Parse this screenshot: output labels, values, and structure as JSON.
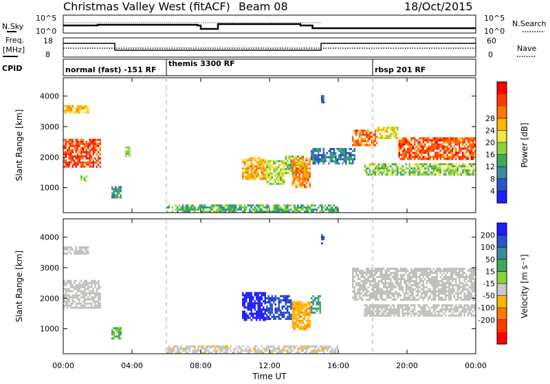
{
  "header": {
    "title": "Christmas Valley West (fitACF)",
    "beam": "Beam 08",
    "date": "18/Oct/2015"
  },
  "time_axis": {
    "label": "Time UT",
    "range_hours": [
      0,
      24
    ],
    "tick_labels": [
      "00:00",
      "04:00",
      "08:00",
      "12:00",
      "16:00",
      "20:00",
      "00:00"
    ],
    "tick_hours": [
      0,
      4,
      8,
      12,
      16,
      20,
      24
    ]
  },
  "mode_boundaries_hours": [
    6,
    18
  ],
  "nsky_panel": {
    "left_label": "N.Sky",
    "right_label": "N.Search",
    "left_ticks": [
      "10^5",
      "10^0"
    ],
    "right_ticks": [
      "10^5",
      "10^0"
    ]
  },
  "freq_panel": {
    "left_label_1": "Freq.",
    "left_label_2": "[MHz]",
    "right_label": "Nave",
    "left_ticks": [
      "18",
      "8"
    ],
    "right_ticks": [
      "60",
      "0"
    ]
  },
  "cpid_panel": {
    "label": "CPID",
    "segments": [
      {
        "start_hour": 0,
        "end_hour": 6,
        "label": "normal (fast) -151 RF"
      },
      {
        "start_hour": 6,
        "end_hour": 18,
        "label": "themis 3300 RF"
      },
      {
        "start_hour": 18,
        "end_hour": 24,
        "label": "rbsp 201 RF"
      }
    ]
  },
  "colors": {
    "power_scale": [
      "#1e1eff",
      "#2a55c8",
      "#3a8aa0",
      "#3caa5a",
      "#8cd23c",
      "#f0e63c",
      "#ffb400",
      "#ff7800",
      "#ff3c00",
      "#ff0000"
    ],
    "velocity_scale": [
      "#1e1eff",
      "#2a55c8",
      "#3a8aa0",
      "#3caa5a",
      "#8cd23c",
      "#c8c8c8",
      "#ffb400",
      "#ff7800",
      "#ff3c00",
      "#ff0000"
    ],
    "velocity_ground_scatter": "#c0c0bc"
  },
  "chart_data": [
    {
      "type": "heatmap",
      "name_hint": "power",
      "ylabel": "Slant Range [km]",
      "y_ticks": [
        1000,
        2000,
        3000,
        4000
      ],
      "ylim": [
        180,
        4600
      ],
      "colorbar": {
        "label": "Power [dB]",
        "range": [
          0,
          32
        ],
        "tick_labels": [
          "4",
          "8",
          "12",
          "16",
          "20",
          "24",
          "28"
        ],
        "tick_values": [
          4,
          8,
          12,
          16,
          20,
          24,
          28
        ]
      },
      "regions": [
        {
          "t0": 0.0,
          "t1": 2.2,
          "r0": 1700,
          "r1": 2600,
          "value": 27
        },
        {
          "t0": 0.0,
          "t1": 1.5,
          "r0": 3450,
          "r1": 3700,
          "value": 20
        },
        {
          "t0": 1.0,
          "t1": 1.4,
          "r0": 1200,
          "r1": 1400,
          "value": 15
        },
        {
          "t0": 2.8,
          "t1": 3.4,
          "r0": 650,
          "r1": 1050,
          "value": 9
        },
        {
          "t0": 3.6,
          "t1": 3.9,
          "r0": 2050,
          "r1": 2350,
          "value": 16
        },
        {
          "t0": 10.4,
          "t1": 11.8,
          "r0": 1300,
          "r1": 2000,
          "value": 22
        },
        {
          "t0": 11.8,
          "t1": 12.9,
          "r0": 1150,
          "r1": 1900,
          "value": 16
        },
        {
          "t0": 12.9,
          "t1": 14.0,
          "r0": 1500,
          "r1": 2050,
          "value": 13
        },
        {
          "t0": 13.3,
          "t1": 14.4,
          "r0": 1000,
          "r1": 2000,
          "value": 23
        },
        {
          "t0": 14.4,
          "t1": 17.0,
          "r0": 1800,
          "r1": 2300,
          "value": 8
        },
        {
          "t0": 15.0,
          "t1": 15.2,
          "r0": 3800,
          "r1": 4100,
          "value": 6
        },
        {
          "t0": 16.8,
          "t1": 18.3,
          "r0": 2400,
          "r1": 2900,
          "value": 25
        },
        {
          "t0": 18.3,
          "t1": 19.5,
          "r0": 2600,
          "r1": 3000,
          "value": 18
        },
        {
          "t0": 19.5,
          "t1": 24.0,
          "r0": 1950,
          "r1": 2650,
          "value": 26
        },
        {
          "t0": 17.5,
          "t1": 24.0,
          "r0": 1450,
          "r1": 1800,
          "value": 14
        },
        {
          "t0": 6.0,
          "t1": 16.0,
          "r0": 200,
          "r1": 450,
          "value": 12
        }
      ]
    },
    {
      "type": "heatmap",
      "name_hint": "velocity",
      "ylabel": "Slant Range [km]",
      "y_ticks": [
        1000,
        2000,
        3000,
        4000
      ],
      "ylim": [
        180,
        4600
      ],
      "colorbar": {
        "label": "Velocity [m s⁻¹]",
        "range": [
          -250,
          250
        ],
        "tick_labels": [
          "200",
          "100",
          "50",
          "15",
          "-15",
          "-50",
          "-100",
          "-200"
        ],
        "tick_values": [
          200,
          100,
          50,
          15,
          -15,
          -50,
          -100,
          -200
        ]
      },
      "regions": [
        {
          "t0": 0.0,
          "t1": 2.2,
          "r0": 1700,
          "r1": 2600,
          "value": 0,
          "ground_scatter": true
        },
        {
          "t0": 0.0,
          "t1": 1.5,
          "r0": 3450,
          "r1": 3700,
          "value": 0,
          "ground_scatter": true
        },
        {
          "t0": 2.8,
          "t1": 3.4,
          "r0": 650,
          "r1": 1050,
          "value": 60
        },
        {
          "t0": 10.4,
          "t1": 11.8,
          "r0": 1300,
          "r1": 2200,
          "value": 230
        },
        {
          "t0": 11.8,
          "t1": 13.3,
          "r0": 1300,
          "r1": 2100,
          "value": 180
        },
        {
          "t0": 13.3,
          "t1": 14.4,
          "r0": 1000,
          "r1": 1900,
          "value": -80
        },
        {
          "t0": 14.4,
          "t1": 15.0,
          "r0": 1500,
          "r1": 2100,
          "value": 100
        },
        {
          "t0": 15.0,
          "t1": 15.2,
          "r0": 3800,
          "r1": 4100,
          "value": 200
        },
        {
          "t0": 16.8,
          "t1": 24.0,
          "r0": 1950,
          "r1": 3000,
          "value": 0,
          "ground_scatter": true
        },
        {
          "t0": 17.5,
          "t1": 24.0,
          "r0": 1400,
          "r1": 1800,
          "value": 0,
          "ground_scatter": true
        },
        {
          "t0": 6.0,
          "t1": 16.0,
          "r0": 200,
          "r1": 450,
          "value": -30
        }
      ]
    }
  ]
}
